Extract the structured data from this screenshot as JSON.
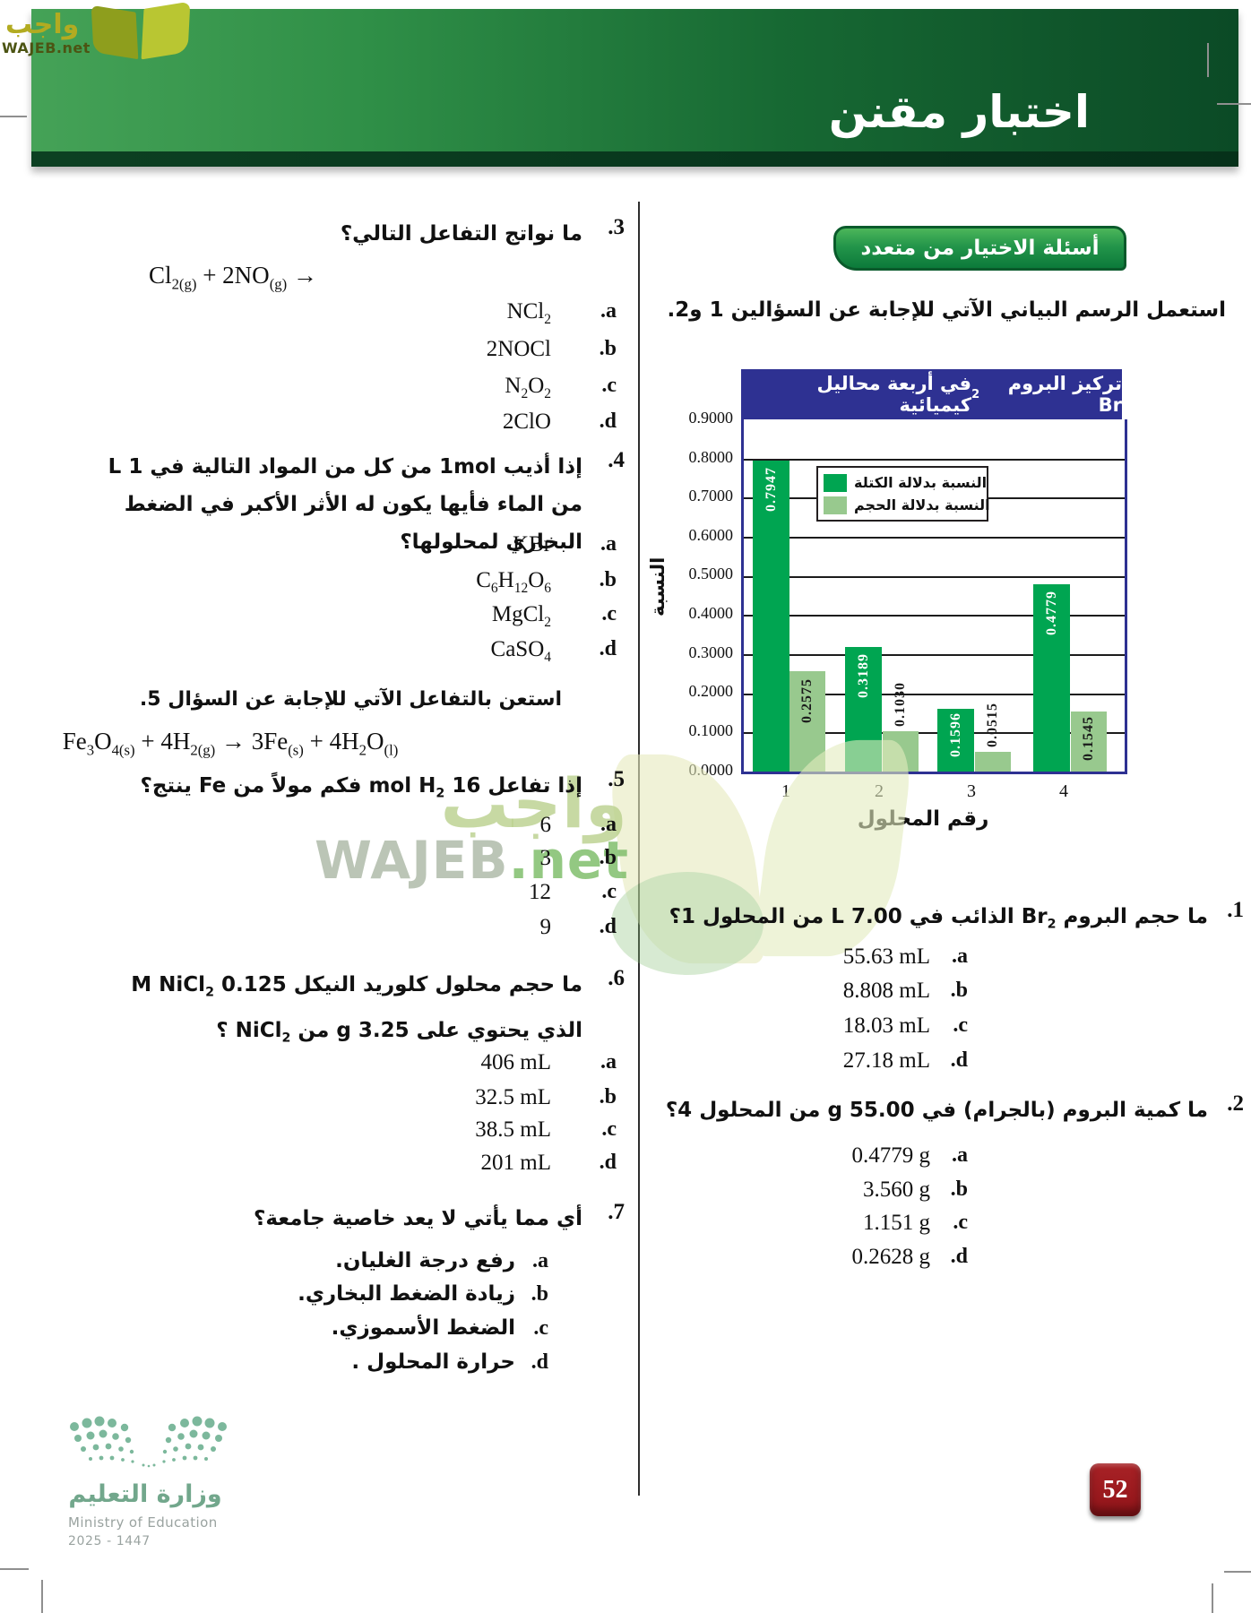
{
  "header": {
    "title": "اختبار مقنن"
  },
  "brand": {
    "arabic": "واجب",
    "latin": "WAJEB",
    "suffix": ".net",
    "latin_full": "WAJEB.net"
  },
  "right_column": {
    "section_badge": "أسئلة الاختيار من متعدد",
    "intro": "استعمل الرسم البياني الآتي للإجابة عن السؤالين 1 و2.",
    "questions": [
      {
        "number": "1.",
        "text_html": "ما حجم البروم Br<sub>2</sub> الذائب في 7.00 L من المحلول 1؟",
        "options": [
          {
            "letter": "a.",
            "value_html": "55.63 mL"
          },
          {
            "letter": "b.",
            "value_html": "8.808 mL"
          },
          {
            "letter": "c.",
            "value_html": "18.03 mL"
          },
          {
            "letter": "d.",
            "value_html": "27.18 mL"
          }
        ]
      },
      {
        "number": "2.",
        "text_html": "ما كمية البروم (بالجرام) في 55.00 g من المحلول 4؟",
        "options": [
          {
            "letter": "a.",
            "value_html": "0.4779 g"
          },
          {
            "letter": "b.",
            "value_html": "3.560 g"
          },
          {
            "letter": "c.",
            "value_html": "1.151 g"
          },
          {
            "letter": "d.",
            "value_html": "0.2628 g"
          }
        ]
      }
    ]
  },
  "left_column": {
    "questions": [
      {
        "number": "3.",
        "text_html": "ما نواتج التفاعل التالي؟",
        "equation_html": "Cl<sub>2(g)</sub> + 2NO<sub>(g)</sub> →",
        "options": [
          {
            "letter": "a.",
            "value_html": "NCl<sub>2</sub>"
          },
          {
            "letter": "b.",
            "value_html": "2NOCl"
          },
          {
            "letter": "c.",
            "value_html": "N<sub>2</sub>O<sub>2</sub>"
          },
          {
            "letter": "d.",
            "value_html": "2ClO"
          }
        ]
      },
      {
        "number": "4.",
        "text_html": "إذا أذيب 1mol من كل من المواد التالية في 1 L من الماء فأيها يكون له الأثر الأكبر في الضغط البخاري لمحلولها؟",
        "options": [
          {
            "letter": "a.",
            "value_html": "KBr"
          },
          {
            "letter": "b.",
            "value_html": "C<sub>6</sub>H<sub>12</sub>O<sub>6</sub>"
          },
          {
            "letter": "c.",
            "value_html": "MgCl<sub>2</sub>"
          },
          {
            "letter": "d.",
            "value_html": "CaSO<sub>4</sub>"
          }
        ]
      },
      {
        "number": "5.",
        "lead_in": "استعن بالتفاعل الآتي للإجابة عن السؤال 5.",
        "equation_html": "Fe<sub>3</sub>O<sub>4(s)</sub> + 4H<sub>2(g)</sub> → 3Fe<sub>(s)</sub> + 4H<sub>2</sub>O<sub>(l)</sub>",
        "text_html": "إذا تفاعل 16 mol H<sub>2</sub> فكم مولاً من Fe ينتج؟",
        "options": [
          {
            "letter": "a.",
            "value_html": "6"
          },
          {
            "letter": "b.",
            "value_html": "3"
          },
          {
            "letter": "c.",
            "value_html": "12"
          },
          {
            "letter": "d.",
            "value_html": "9"
          }
        ]
      },
      {
        "number": "6.",
        "text_html": "ما حجم محلول كلوريد النيكل 0.125 M NiCl<sub>2</sub> الذي يحتوي على 3.25 g من NiCl<sub>2</sub> ؟",
        "options": [
          {
            "letter": "a.",
            "value_html": "406 mL"
          },
          {
            "letter": "b.",
            "value_html": "32.5 mL"
          },
          {
            "letter": "c.",
            "value_html": "38.5 mL"
          },
          {
            "letter": "d.",
            "value_html": "201 mL"
          }
        ]
      },
      {
        "number": "7.",
        "text_html": "أي مما يأتي لا يعد خاصية جامعة؟",
        "options": [
          {
            "letter": "a.",
            "text": "رفع درجة الغليان."
          },
          {
            "letter": "b.",
            "text": "زيادة الضغط البخاري."
          },
          {
            "letter": "c.",
            "text": "الضغط الأسموزي."
          },
          {
            "letter": "d.",
            "text": "حرارة المحلول ."
          }
        ]
      }
    ]
  },
  "chart_data": {
    "type": "bar",
    "title": "تركيز البروم Br2 في أربعة محاليل كيميائية",
    "title_html": "تركيز البروم Br<sub>2</sub> في أربعة محاليل كيميائية",
    "categories": [
      "1",
      "2",
      "3",
      "4"
    ],
    "series": [
      {
        "name": "النسبة بدلالة الكتلة",
        "color": "#00a551",
        "values": [
          0.7947,
          0.3189,
          0.1596,
          0.4779
        ],
        "labels": [
          "0.7947",
          "0.3189",
          "0.1596",
          "0.4779"
        ]
      },
      {
        "name": "النسبة بدلالة الحجم",
        "color": "#98c98e",
        "values": [
          0.2575,
          0.103,
          0.0515,
          0.1545
        ],
        "labels": [
          "0.2575",
          "0.1030",
          "0.0515",
          "0.1545"
        ]
      }
    ],
    "xlabel": "رقم المحلول",
    "ylabel": "النسبة",
    "ylim": [
      0,
      0.9
    ],
    "yticks": [
      "0.9000",
      "0.8000",
      "0.7000",
      "0.6000",
      "0.5000",
      "0.4000",
      "0.3000",
      "0.2000",
      "0.1000",
      "0.0000"
    ],
    "grid": true,
    "legend_position": "upper-middle"
  },
  "footer": {
    "ministry_ar": "وزارة التعليم",
    "ministry_en": "Ministry of Education",
    "years": "2025 - 1447"
  },
  "page_number": "52",
  "colors": {
    "header_green": "#3a9a4f",
    "header_green_dark": "#0b4a26",
    "badge_green": "#23954a",
    "navy": "#2e3192",
    "bar_mass": "#00a551",
    "bar_volume": "#98c98e",
    "page_badge_red": "#9e1b1f",
    "ministry_green": "#72a78c"
  }
}
